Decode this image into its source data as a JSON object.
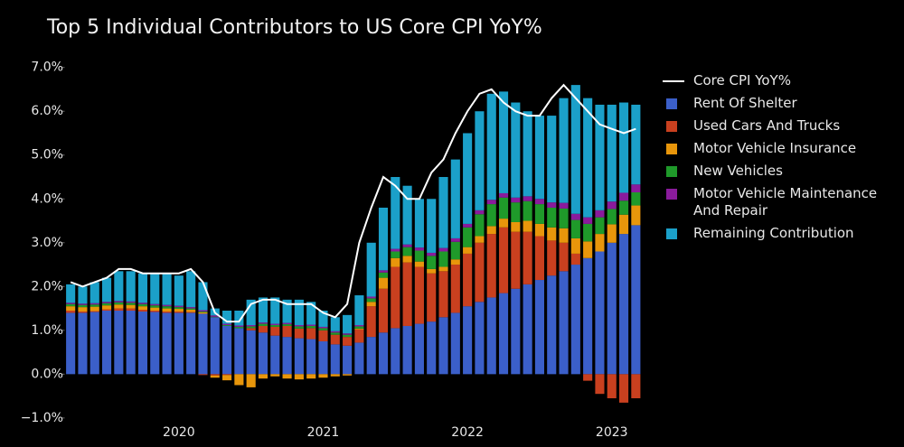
{
  "chart_data": {
    "type": "stacked-bar-line",
    "title": "Top 5 Individual Contributors to US Core CPI YoY%",
    "categories": [
      null,
      null,
      null,
      null,
      null,
      null,
      null,
      null,
      null,
      "2020",
      null,
      null,
      null,
      null,
      null,
      null,
      null,
      null,
      null,
      null,
      null,
      "2021",
      null,
      null,
      null,
      null,
      null,
      null,
      null,
      null,
      null,
      null,
      null,
      "2022",
      null,
      null,
      null,
      null,
      null,
      null,
      null,
      null,
      null,
      null,
      null,
      "2023",
      null,
      null
    ],
    "ylim": [
      -1.25,
      7.2
    ],
    "yticks": [
      {
        "value": -1,
        "label": "−1.0%"
      },
      {
        "value": 0,
        "label": "0.0%"
      },
      {
        "value": 1,
        "label": "1.0%"
      },
      {
        "value": 2,
        "label": "2.0%"
      },
      {
        "value": 3,
        "label": "3.0%"
      },
      {
        "value": 4,
        "label": "4.0%"
      },
      {
        "value": 5,
        "label": "5.0%"
      },
      {
        "value": 6,
        "label": "6.0%"
      },
      {
        "value": 7,
        "label": "7.0%"
      }
    ],
    "line": {
      "name": "Core CPI YoY%",
      "color": "#ffffff",
      "values": [
        2.1,
        2.0,
        2.1,
        2.2,
        2.4,
        2.4,
        2.3,
        2.3,
        2.3,
        2.3,
        2.4,
        2.1,
        1.4,
        1.2,
        1.2,
        1.6,
        1.7,
        1.7,
        1.6,
        1.6,
        1.6,
        1.4,
        1.3,
        1.6,
        3.0,
        3.8,
        4.5,
        4.3,
        4.0,
        4.0,
        4.6,
        4.9,
        5.5,
        6.0,
        6.4,
        6.5,
        6.2,
        6.0,
        5.9,
        5.9,
        6.3,
        6.6,
        6.3,
        6.0,
        5.7,
        5.6,
        5.5,
        5.6
      ]
    },
    "series": [
      {
        "name": "Rent Of Shelter",
        "color": "#3b5fc9",
        "values": [
          1.4,
          1.4,
          1.42,
          1.45,
          1.45,
          1.45,
          1.43,
          1.42,
          1.4,
          1.4,
          1.4,
          1.38,
          1.3,
          1.1,
          1.05,
          1.0,
          0.95,
          0.88,
          0.85,
          0.82,
          0.8,
          0.75,
          0.68,
          0.65,
          0.72,
          0.85,
          0.95,
          1.05,
          1.1,
          1.15,
          1.2,
          1.3,
          1.4,
          1.55,
          1.65,
          1.75,
          1.85,
          1.95,
          2.05,
          2.15,
          2.25,
          2.35,
          2.5,
          2.65,
          2.8,
          3.0,
          3.2,
          3.4
        ]
      },
      {
        "name": "Used Cars And Trucks",
        "color": "#c9401f",
        "values": [
          0.05,
          0.03,
          0.02,
          0.03,
          0.05,
          0.05,
          0.04,
          0.03,
          0.03,
          0.03,
          0.02,
          -0.02,
          -0.03,
          -0.02,
          0.0,
          0.05,
          0.15,
          0.2,
          0.25,
          0.22,
          0.25,
          0.25,
          0.22,
          0.2,
          0.3,
          0.7,
          1.0,
          1.4,
          1.45,
          1.3,
          1.1,
          1.05,
          1.1,
          1.2,
          1.35,
          1.45,
          1.5,
          1.3,
          1.2,
          1.0,
          0.8,
          0.65,
          0.25,
          -0.15,
          -0.45,
          -0.55,
          -0.65,
          -0.55
        ]
      },
      {
        "name": "Motor Vehicle Insurance",
        "color": "#e8960b",
        "values": [
          0.1,
          0.1,
          0.1,
          0.09,
          0.09,
          0.08,
          0.08,
          0.07,
          0.07,
          0.06,
          0.05,
          0.03,
          -0.05,
          -0.12,
          -0.25,
          -0.3,
          -0.1,
          -0.05,
          -0.1,
          -0.12,
          -0.1,
          -0.08,
          -0.05,
          -0.03,
          0.02,
          0.1,
          0.25,
          0.2,
          0.15,
          0.12,
          0.1,
          0.1,
          0.12,
          0.15,
          0.15,
          0.18,
          0.2,
          0.22,
          0.25,
          0.28,
          0.3,
          0.33,
          0.35,
          0.38,
          0.4,
          0.42,
          0.44,
          0.45
        ]
      },
      {
        "name": "New Vehicles",
        "color": "#1f9a2a",
        "values": [
          0.05,
          0.05,
          0.05,
          0.05,
          0.05,
          0.05,
          0.05,
          0.05,
          0.05,
          0.04,
          0.03,
          0.02,
          0.01,
          0.02,
          0.03,
          0.04,
          0.05,
          0.04,
          0.04,
          0.05,
          0.05,
          0.05,
          0.05,
          0.05,
          0.05,
          0.08,
          0.12,
          0.15,
          0.2,
          0.25,
          0.3,
          0.35,
          0.4,
          0.45,
          0.5,
          0.5,
          0.48,
          0.45,
          0.45,
          0.45,
          0.45,
          0.45,
          0.42,
          0.4,
          0.38,
          0.35,
          0.32,
          0.3
        ]
      },
      {
        "name": "Motor Vehicle Maintenance And Repair",
        "color": "#8a1b9c",
        "values": [
          0.03,
          0.03,
          0.03,
          0.03,
          0.03,
          0.03,
          0.03,
          0.03,
          0.03,
          0.03,
          0.03,
          0.03,
          0.03,
          0.03,
          0.03,
          0.03,
          0.03,
          0.03,
          0.03,
          0.03,
          0.03,
          0.03,
          0.03,
          0.03,
          0.03,
          0.04,
          0.05,
          0.06,
          0.06,
          0.07,
          0.07,
          0.08,
          0.08,
          0.08,
          0.09,
          0.1,
          0.1,
          0.11,
          0.11,
          0.12,
          0.12,
          0.13,
          0.14,
          0.15,
          0.16,
          0.17,
          0.18,
          0.18
        ]
      },
      {
        "name": "Remaining Contribution",
        "color": "#1ba0c9",
        "values": [
          0.42,
          0.39,
          0.48,
          0.55,
          0.68,
          0.69,
          0.67,
          0.7,
          0.72,
          0.69,
          0.82,
          0.64,
          0.16,
          0.3,
          0.34,
          0.58,
          0.57,
          0.6,
          0.53,
          0.58,
          0.52,
          0.37,
          0.32,
          0.42,
          0.68,
          1.23,
          1.43,
          1.64,
          1.34,
          1.11,
          1.23,
          1.62,
          1.8,
          2.07,
          2.26,
          2.42,
          2.32,
          2.17,
          1.94,
          1.9,
          1.98,
          2.39,
          2.94,
          2.72,
          2.41,
          2.21,
          2.06,
          1.82
        ]
      }
    ]
  }
}
